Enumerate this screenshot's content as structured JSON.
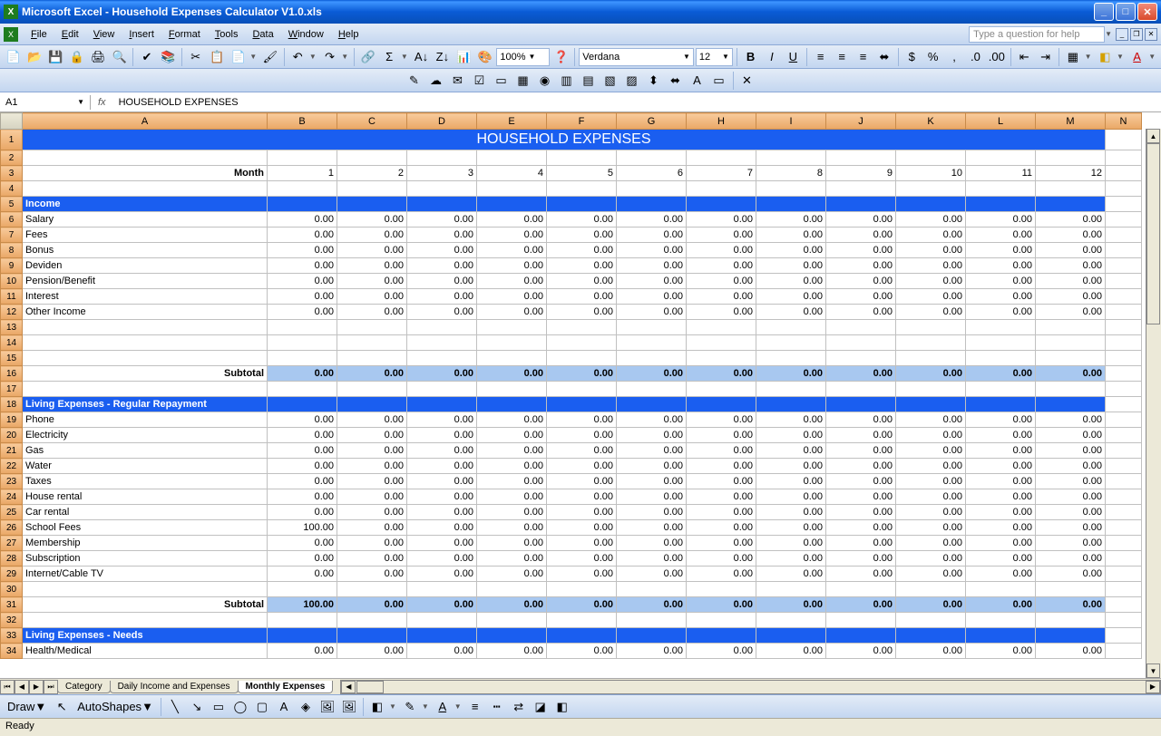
{
  "title": "Microsoft Excel - Household Expenses Calculator V1.0.xls",
  "menus": [
    "File",
    "Edit",
    "View",
    "Insert",
    "Format",
    "Tools",
    "Data",
    "Window",
    "Help"
  ],
  "help_placeholder": "Type a question for help",
  "zoom": "100%",
  "font_name": "Verdana",
  "font_size": "12",
  "namebox": "A1",
  "formula": "HOUSEHOLD EXPENSES",
  "columns": [
    "A",
    "B",
    "C",
    "D",
    "E",
    "F",
    "G",
    "H",
    "I",
    "J",
    "K",
    "L",
    "M",
    "N"
  ],
  "col_widths": {
    "rowhdr": 24,
    "A": 270,
    "data": 77,
    "N": 40
  },
  "big_title": "HOUSEHOLD EXPENSES",
  "month_label": "Month",
  "months": [
    "1",
    "2",
    "3",
    "4",
    "5",
    "6",
    "7",
    "8",
    "9",
    "10",
    "11",
    "12"
  ],
  "sections": [
    {
      "title": "Income",
      "rows": [
        {
          "label": "Salary",
          "v": [
            "0.00",
            "0.00",
            "0.00",
            "0.00",
            "0.00",
            "0.00",
            "0.00",
            "0.00",
            "0.00",
            "0.00",
            "0.00",
            "0.00"
          ]
        },
        {
          "label": "Fees",
          "v": [
            "0.00",
            "0.00",
            "0.00",
            "0.00",
            "0.00",
            "0.00",
            "0.00",
            "0.00",
            "0.00",
            "0.00",
            "0.00",
            "0.00"
          ]
        },
        {
          "label": "Bonus",
          "v": [
            "0.00",
            "0.00",
            "0.00",
            "0.00",
            "0.00",
            "0.00",
            "0.00",
            "0.00",
            "0.00",
            "0.00",
            "0.00",
            "0.00"
          ]
        },
        {
          "label": "Deviden",
          "v": [
            "0.00",
            "0.00",
            "0.00",
            "0.00",
            "0.00",
            "0.00",
            "0.00",
            "0.00",
            "0.00",
            "0.00",
            "0.00",
            "0.00"
          ]
        },
        {
          "label": "Pension/Benefit",
          "v": [
            "0.00",
            "0.00",
            "0.00",
            "0.00",
            "0.00",
            "0.00",
            "0.00",
            "0.00",
            "0.00",
            "0.00",
            "0.00",
            "0.00"
          ]
        },
        {
          "label": "Interest",
          "v": [
            "0.00",
            "0.00",
            "0.00",
            "0.00",
            "0.00",
            "0.00",
            "0.00",
            "0.00",
            "0.00",
            "0.00",
            "0.00",
            "0.00"
          ]
        },
        {
          "label": "Other Income",
          "v": [
            "0.00",
            "0.00",
            "0.00",
            "0.00",
            "0.00",
            "0.00",
            "0.00",
            "0.00",
            "0.00",
            "0.00",
            "0.00",
            "0.00"
          ]
        }
      ],
      "blank_after": 3,
      "subtotal": [
        "0.00",
        "0.00",
        "0.00",
        "0.00",
        "0.00",
        "0.00",
        "0.00",
        "0.00",
        "0.00",
        "0.00",
        "0.00",
        "0.00"
      ]
    },
    {
      "title": "Living Expenses - Regular Repayment",
      "rows": [
        {
          "label": "Phone",
          "v": [
            "0.00",
            "0.00",
            "0.00",
            "0.00",
            "0.00",
            "0.00",
            "0.00",
            "0.00",
            "0.00",
            "0.00",
            "0.00",
            "0.00"
          ]
        },
        {
          "label": "Electricity",
          "v": [
            "0.00",
            "0.00",
            "0.00",
            "0.00",
            "0.00",
            "0.00",
            "0.00",
            "0.00",
            "0.00",
            "0.00",
            "0.00",
            "0.00"
          ]
        },
        {
          "label": "Gas",
          "v": [
            "0.00",
            "0.00",
            "0.00",
            "0.00",
            "0.00",
            "0.00",
            "0.00",
            "0.00",
            "0.00",
            "0.00",
            "0.00",
            "0.00"
          ]
        },
        {
          "label": "Water",
          "v": [
            "0.00",
            "0.00",
            "0.00",
            "0.00",
            "0.00",
            "0.00",
            "0.00",
            "0.00",
            "0.00",
            "0.00",
            "0.00",
            "0.00"
          ]
        },
        {
          "label": "Taxes",
          "v": [
            "0.00",
            "0.00",
            "0.00",
            "0.00",
            "0.00",
            "0.00",
            "0.00",
            "0.00",
            "0.00",
            "0.00",
            "0.00",
            "0.00"
          ]
        },
        {
          "label": "House rental",
          "v": [
            "0.00",
            "0.00",
            "0.00",
            "0.00",
            "0.00",
            "0.00",
            "0.00",
            "0.00",
            "0.00",
            "0.00",
            "0.00",
            "0.00"
          ]
        },
        {
          "label": "Car rental",
          "v": [
            "0.00",
            "0.00",
            "0.00",
            "0.00",
            "0.00",
            "0.00",
            "0.00",
            "0.00",
            "0.00",
            "0.00",
            "0.00",
            "0.00"
          ]
        },
        {
          "label": "School Fees",
          "v": [
            "100.00",
            "0.00",
            "0.00",
            "0.00",
            "0.00",
            "0.00",
            "0.00",
            "0.00",
            "0.00",
            "0.00",
            "0.00",
            "0.00"
          ]
        },
        {
          "label": "Membership",
          "v": [
            "0.00",
            "0.00",
            "0.00",
            "0.00",
            "0.00",
            "0.00",
            "0.00",
            "0.00",
            "0.00",
            "0.00",
            "0.00",
            "0.00"
          ]
        },
        {
          "label": "Subscription",
          "v": [
            "0.00",
            "0.00",
            "0.00",
            "0.00",
            "0.00",
            "0.00",
            "0.00",
            "0.00",
            "0.00",
            "0.00",
            "0.00",
            "0.00"
          ]
        },
        {
          "label": "Internet/Cable TV",
          "v": [
            "0.00",
            "0.00",
            "0.00",
            "0.00",
            "0.00",
            "0.00",
            "0.00",
            "0.00",
            "0.00",
            "0.00",
            "0.00",
            "0.00"
          ]
        }
      ],
      "blank_after": 1,
      "subtotal": [
        "100.00",
        "0.00",
        "0.00",
        "0.00",
        "0.00",
        "0.00",
        "0.00",
        "0.00",
        "0.00",
        "0.00",
        "0.00",
        "0.00"
      ]
    },
    {
      "title": "Living Expenses - Needs",
      "rows": [
        {
          "label": "Health/Medical",
          "v": [
            "0.00",
            "0.00",
            "0.00",
            "0.00",
            "0.00",
            "0.00",
            "0.00",
            "0.00",
            "0.00",
            "0.00",
            "0.00",
            "0.00"
          ]
        }
      ],
      "blank_after": 0,
      "subtotal": null
    }
  ],
  "subtotal_label": "Subtotal",
  "tabs": [
    "Category",
    "Daily Income and Expenses",
    "Monthly Expenses"
  ],
  "active_tab": 2,
  "draw_label": "Draw",
  "autoshapes_label": "AutoShapes",
  "status": "Ready",
  "colors": {
    "title_bg": "#1a5ef0",
    "title_fg": "#ffffff",
    "subtotal_bg": "#a8c8f0",
    "header_bg_top": "#f8cb9c",
    "header_bg_bot": "#e9a766",
    "header_border": "#c98b4a",
    "grid": "#c0c0c0"
  }
}
